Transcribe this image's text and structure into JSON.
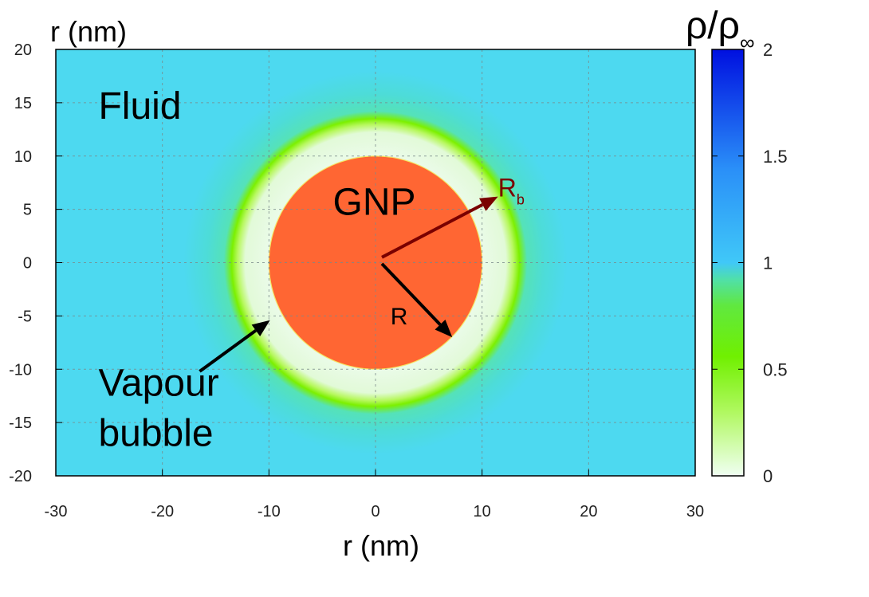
{
  "chart_data": {
    "type": "heatmap",
    "title": "",
    "xlabel": "r (nm)",
    "ylabel": "r (nm)",
    "xlim": [
      -30,
      30
    ],
    "ylim": [
      -20,
      20
    ],
    "xticks": [
      "-30",
      "-20",
      "-10",
      "0",
      "10",
      "20",
      "30"
    ],
    "xtick_values": [
      -30,
      -20,
      -10,
      0,
      10,
      20,
      30
    ],
    "yticks": [
      "-20",
      "-15",
      "-10",
      "-5",
      "0",
      "5",
      "10",
      "15",
      "20"
    ],
    "ytick_values": [
      -20,
      -15,
      -10,
      -5,
      0,
      5,
      10,
      15,
      20
    ],
    "grid": true,
    "colorbar": {
      "label": "ρ/ρ",
      "label_sub": "∞",
      "range": [
        0,
        2
      ],
      "ticks": [
        "0",
        "0.5",
        "1",
        "1.5",
        "2"
      ],
      "tick_values": [
        0,
        0.5,
        1,
        1.5,
        2
      ],
      "colors": [
        "#f0fff2",
        "#a8f840",
        "#6cf000",
        "#4fe6a0",
        "#3fc8f8",
        "#2a90f8",
        "#0010e0"
      ]
    },
    "field": {
      "fluid_density": 1.0,
      "gnp_radius": 10,
      "bubble_radius": 13.5,
      "gnp_color": "#ff6633",
      "fluid_color": "#4dd9f0",
      "bubble_color": "#ecfbe6",
      "interface_color": "#7cf000"
    },
    "annotations": {
      "fluid": {
        "text": "Fluid",
        "x": -26,
        "y": 13.5
      },
      "gnp": {
        "text": "GNP",
        "x": -4,
        "y": 4.5
      },
      "vapour_line1": {
        "text": "Vapour",
        "x": -26,
        "y": -12.5
      },
      "vapour_line2": {
        "text": "bubble",
        "x": -26,
        "y": -17.2
      },
      "r_label": {
        "text": "R",
        "x": 1.4,
        "y": -5.8
      },
      "rb_label": {
        "text": "R",
        "sub": "b",
        "x": 11.5,
        "y": 6.2,
        "color": "#7a0000"
      },
      "arrow_r": {
        "from": [
          0.6,
          -0.1
        ],
        "to": [
          7.2,
          -7
        ],
        "color": "#000000"
      },
      "arrow_rb": {
        "from": [
          0.6,
          0.5
        ],
        "to": [
          11.5,
          6.2
        ],
        "color": "#7a0000"
      },
      "arrow_vapour": {
        "from": [
          -16.5,
          -10.2
        ],
        "to": [
          -9.9,
          -5.4
        ],
        "color": "#000000"
      }
    }
  }
}
